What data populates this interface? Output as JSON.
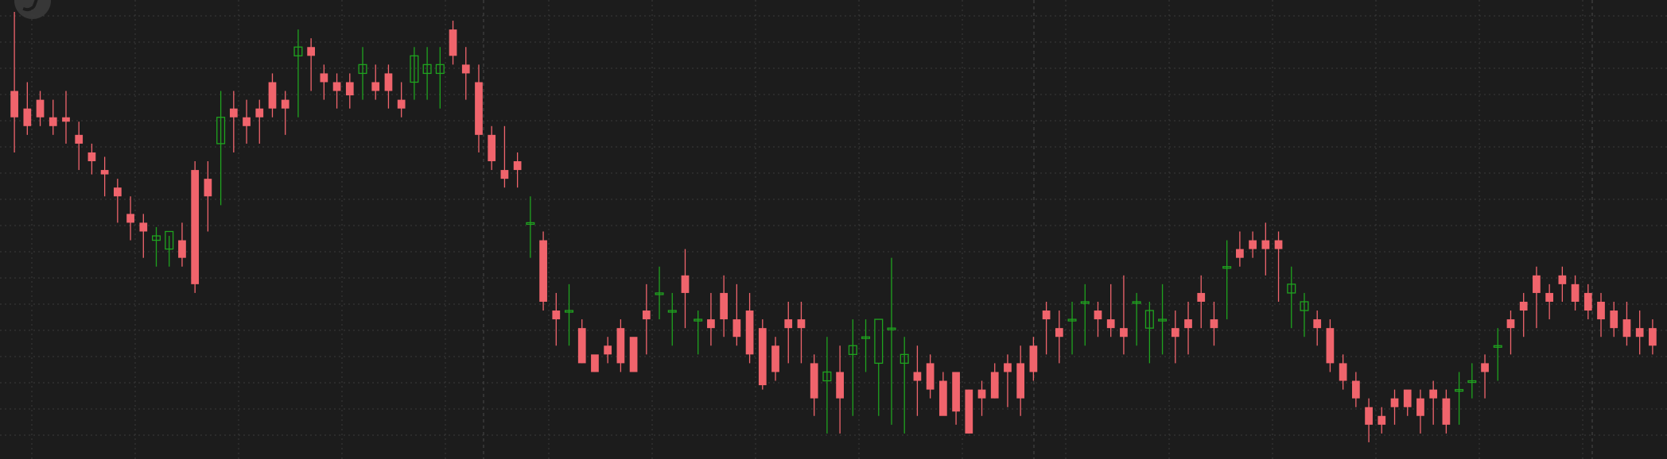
{
  "app": {
    "logo_icon": "app-logo-icon"
  },
  "colors": {
    "background": "#1c1c1c",
    "grid": "#3a3a3a",
    "up": "#1fa31f",
    "down": "#f0646c",
    "date_sep": "#4a4a4a"
  },
  "chart_data": {
    "type": "candlestick",
    "grid": true,
    "date_separators": [
      0.29,
      0.62,
      0.955
    ],
    "candles": [
      [
        340,
        410,
        380,
        500
      ],
      [
        360,
        390,
        370,
        420
      ],
      [
        370,
        400,
        380,
        410
      ],
      [
        360,
        380,
        370,
        400
      ],
      [
        350,
        380,
        375,
        410
      ],
      [
        320,
        360,
        350,
        375
      ],
      [
        315,
        340,
        330,
        350
      ],
      [
        290,
        320,
        315,
        335
      ],
      [
        260,
        300,
        290,
        310
      ],
      [
        240,
        270,
        260,
        290
      ],
      [
        220,
        260,
        250,
        270
      ],
      [
        210,
        240,
        245,
        255
      ],
      [
        210,
        230,
        250,
        245
      ],
      [
        210,
        240,
        220,
        260
      ],
      [
        180,
        320,
        190,
        330
      ],
      [
        250,
        310,
        290,
        330
      ],
      [
        280,
        350,
        380,
        410
      ],
      [
        340,
        390,
        380,
        410
      ],
      [
        350,
        380,
        370,
        400
      ],
      [
        350,
        390,
        380,
        400
      ],
      [
        380,
        420,
        390,
        430
      ],
      [
        360,
        400,
        390,
        410
      ],
      [
        380,
        450,
        460,
        480
      ],
      [
        410,
        460,
        450,
        470
      ],
      [
        400,
        430,
        420,
        440
      ],
      [
        390,
        420,
        410,
        430
      ],
      [
        390,
        420,
        405,
        430
      ],
      [
        400,
        430,
        440,
        460
      ],
      [
        400,
        420,
        410,
        440
      ],
      [
        390,
        430,
        410,
        440
      ],
      [
        380,
        400,
        390,
        420
      ],
      [
        400,
        420,
        450,
        460
      ],
      [
        400,
        430,
        440,
        460
      ],
      [
        390,
        430,
        440,
        460
      ],
      [
        440,
        480,
        450,
        490
      ],
      [
        400,
        440,
        430,
        460
      ],
      [
        340,
        420,
        360,
        440
      ],
      [
        320,
        360,
        330,
        370
      ],
      [
        300,
        320,
        310,
        370
      ],
      [
        300,
        330,
        320,
        340
      ],
      [
        220,
        260,
        260,
        290
      ],
      [
        160,
        240,
        170,
        250
      ],
      [
        120,
        160,
        150,
        180
      ],
      [
        120,
        160,
        160,
        190
      ],
      [
        100,
        140,
        100,
        150
      ],
      [
        90,
        110,
        90,
        100
      ],
      [
        100,
        120,
        110,
        130
      ],
      [
        90,
        140,
        100,
        150
      ],
      [
        100,
        130,
        90,
        120
      ],
      [
        110,
        160,
        150,
        190
      ],
      [
        150,
        180,
        180,
        210
      ],
      [
        120,
        160,
        160,
        180
      ],
      [
        140,
        200,
        180,
        230
      ],
      [
        110,
        150,
        150,
        160
      ],
      [
        120,
        150,
        140,
        180
      ],
      [
        130,
        180,
        150,
        200
      ],
      [
        120,
        150,
        130,
        190
      ],
      [
        100,
        160,
        110,
        180
      ],
      [
        70,
        140,
        75,
        150
      ],
      [
        80,
        120,
        90,
        130
      ],
      [
        100,
        150,
        140,
        170
      ],
      [
        100,
        150,
        140,
        170
      ],
      [
        40,
        100,
        60,
        110
      ],
      [
        20,
        80,
        90,
        130
      ],
      [
        20,
        90,
        60,
        120
      ],
      [
        40,
        110,
        120,
        150
      ],
      [
        90,
        130,
        130,
        150
      ],
      [
        40,
        100,
        150,
        100
      ],
      [
        30,
        140,
        140,
        220
      ],
      [
        20,
        100,
        110,
        130
      ],
      [
        40,
        90,
        80,
        120
      ],
      [
        60,
        100,
        70,
        110
      ],
      [
        50,
        80,
        40,
        90
      ],
      [
        30,
        90,
        45,
        80
      ],
      [
        20,
        70,
        20,
        70
      ],
      [
        40,
        70,
        60,
        80
      ],
      [
        60,
        90,
        60,
        100
      ],
      [
        50,
        100,
        90,
        110
      ],
      [
        40,
        100,
        60,
        120
      ],
      [
        80,
        120,
        90,
        130
      ],
      [
        110,
        160,
        150,
        170
      ],
      [
        100,
        140,
        130,
        160
      ],
      [
        110,
        150,
        150,
        170
      ],
      [
        120,
        170,
        170,
        190
      ],
      [
        130,
        160,
        150,
        170
      ],
      [
        130,
        150,
        140,
        190
      ],
      [
        110,
        140,
        130,
        200
      ],
      [
        120,
        170,
        170,
        180
      ],
      [
        100,
        140,
        160,
        170
      ],
      [
        110,
        150,
        150,
        190
      ],
      [
        100,
        140,
        130,
        160
      ],
      [
        110,
        150,
        140,
        170
      ],
      [
        140,
        180,
        170,
        200
      ],
      [
        120,
        150,
        140,
        170
      ],
      [
        150,
        210,
        210,
        240
      ],
      [
        210,
        230,
        220,
        250
      ],
      [
        220,
        240,
        230,
        250
      ],
      [
        200,
        240,
        230,
        260
      ],
      [
        170,
        240,
        230,
        250
      ],
      [
        140,
        180,
        190,
        210
      ],
      [
        130,
        160,
        170,
        180
      ],
      [
        120,
        150,
        140,
        160
      ],
      [
        90,
        140,
        100,
        150
      ],
      [
        70,
        100,
        80,
        110
      ],
      [
        50,
        80,
        60,
        90
      ],
      [
        10,
        50,
        30,
        60
      ],
      [
        20,
        40,
        30,
        50
      ],
      [
        30,
        60,
        50,
        70
      ],
      [
        40,
        70,
        50,
        60
      ],
      [
        20,
        60,
        40,
        70
      ],
      [
        30,
        70,
        60,
        80
      ],
      [
        20,
        60,
        30,
        70
      ],
      [
        30,
        70,
        70,
        90
      ],
      [
        60,
        80,
        80,
        100
      ],
      [
        60,
        100,
        90,
        110
      ],
      [
        80,
        120,
        120,
        140
      ],
      [
        110,
        150,
        140,
        160
      ],
      [
        130,
        170,
        160,
        180
      ],
      [
        140,
        200,
        180,
        210
      ],
      [
        150,
        180,
        170,
        190
      ],
      [
        170,
        200,
        190,
        210
      ],
      [
        160,
        190,
        170,
        200
      ],
      [
        150,
        180,
        160,
        190
      ],
      [
        130,
        170,
        150,
        180
      ],
      [
        130,
        160,
        140,
        170
      ],
      [
        120,
        150,
        130,
        170
      ],
      [
        110,
        140,
        130,
        160
      ],
      [
        110,
        140,
        120,
        150
      ]
    ]
  }
}
